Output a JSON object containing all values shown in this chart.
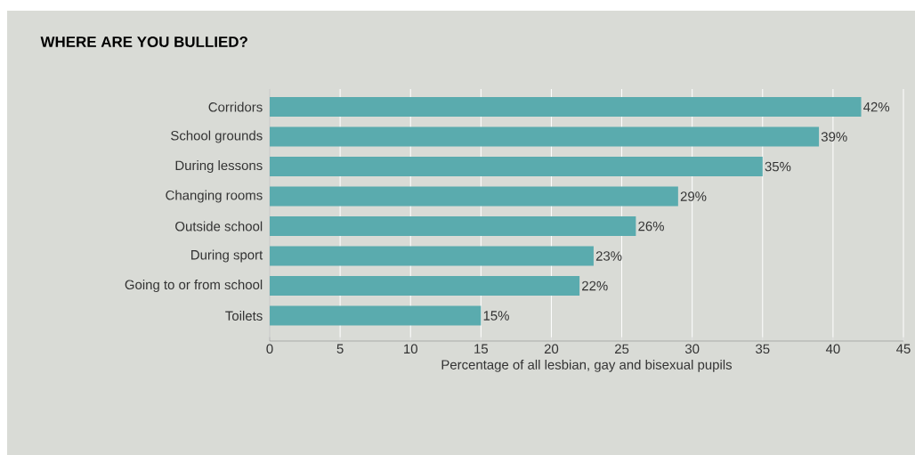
{
  "chart_data": {
    "type": "bar",
    "orientation": "horizontal",
    "title": "WHERE ARE YOU BULLIED?",
    "xlabel": "Percentage of all lesbian, gay and bisexual pupils",
    "categories": [
      "Corridors",
      "School grounds",
      "During lessons",
      "Changing rooms",
      "Outside school",
      "During sport",
      "Going to or from school",
      "Toilets"
    ],
    "values": [
      42,
      39,
      35,
      29,
      26,
      23,
      22,
      15
    ],
    "value_labels": [
      "42%",
      "39%",
      "35%",
      "29%",
      "26%",
      "23%",
      "22%",
      "15%"
    ],
    "color": "#5aabae",
    "xlim": [
      0,
      45
    ],
    "xticks": [
      0,
      5,
      10,
      15,
      20,
      25,
      30,
      35,
      40,
      45
    ],
    "grid": "x"
  }
}
